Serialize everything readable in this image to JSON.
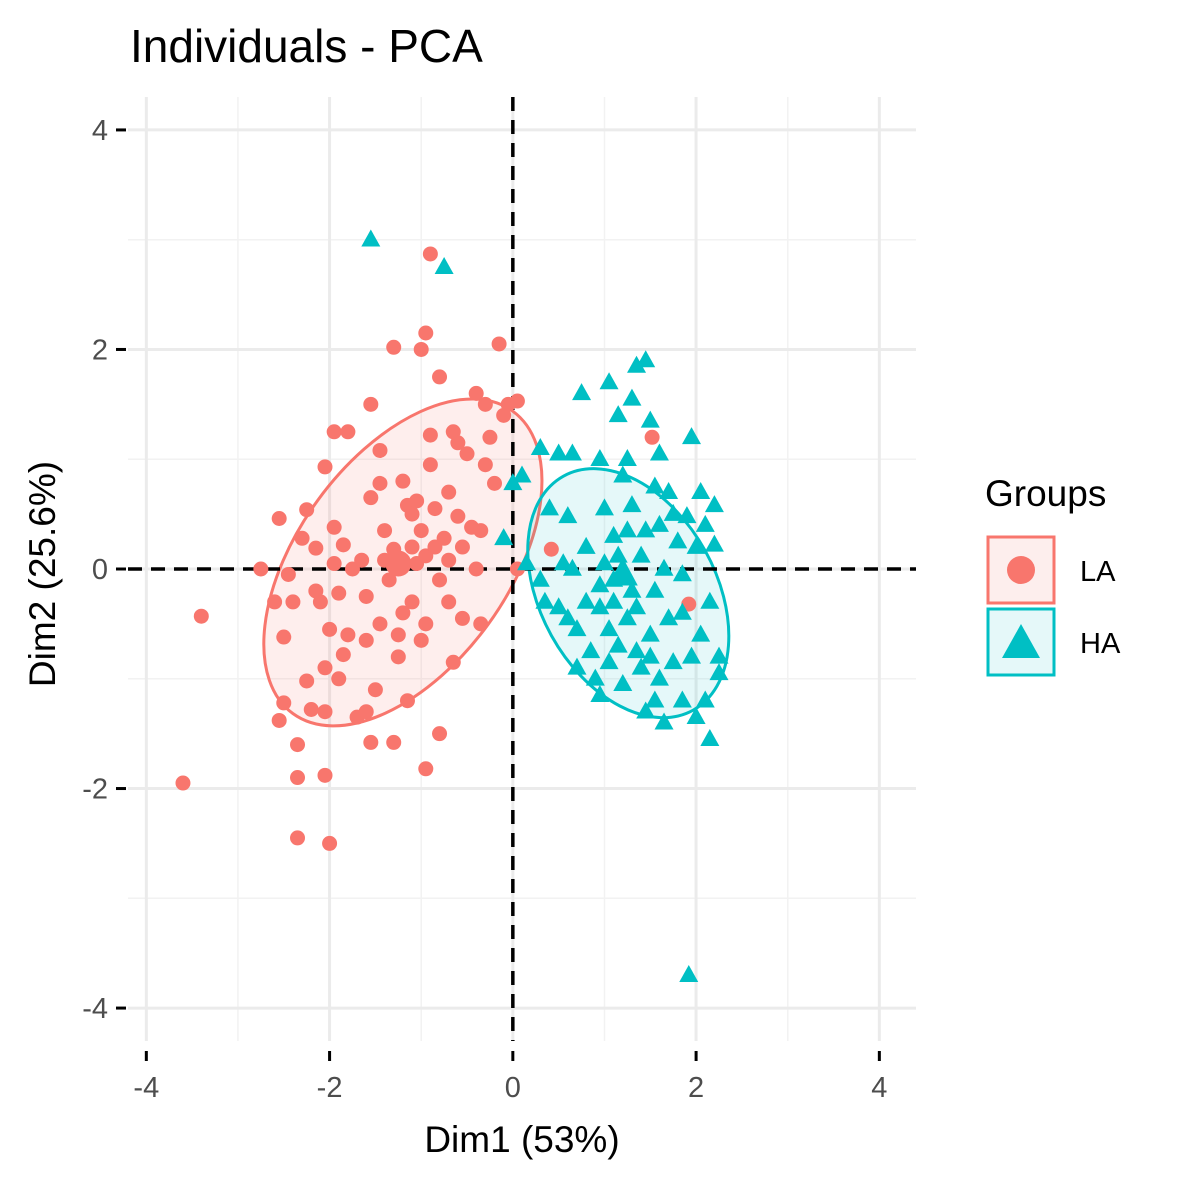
{
  "chart_data": {
    "type": "scatter",
    "title": "Individuals - PCA",
    "xlabel": "Dim1 (53%)",
    "ylabel": "Dim2 (25.6%)",
    "xlim": [
      -4.2,
      4.4
    ],
    "ylim": [
      -4.3,
      4.3
    ],
    "x_ticks": [
      -4,
      -2,
      0,
      2,
      4
    ],
    "y_ticks": [
      -4,
      -2,
      0,
      2,
      4
    ],
    "x_tick_labels": [
      "-4",
      "-2",
      "0",
      "2",
      "4"
    ],
    "y_tick_labels": [
      "-4",
      "-2",
      "0",
      "2",
      "4"
    ],
    "grid": true,
    "reference_lines": {
      "x": 0,
      "y": 0,
      "style": "dashed"
    },
    "legend": {
      "title": "Groups",
      "position": "right"
    },
    "series": [
      {
        "name": "LA",
        "color": "#F8766D",
        "marker": "circle",
        "centroid": [
          -1.25,
          0.05
        ],
        "ellipse": {
          "center": [
            -1.2,
            0.06
          ],
          "rx": 2.04,
          "ry": 0.96,
          "angle_deg": 54
        },
        "points": [
          [
            -3.6,
            -1.95
          ],
          [
            -3.4,
            -0.43
          ],
          [
            -2.75,
            0.0
          ],
          [
            -2.55,
            0.46
          ],
          [
            -2.6,
            -0.3
          ],
          [
            -2.5,
            -1.22
          ],
          [
            -2.55,
            -1.38
          ],
          [
            -2.5,
            -0.62
          ],
          [
            -2.45,
            -0.05
          ],
          [
            -2.4,
            -0.3
          ],
          [
            -2.35,
            -1.6
          ],
          [
            -2.35,
            -1.9
          ],
          [
            -2.35,
            -2.45
          ],
          [
            -2.3,
            0.28
          ],
          [
            -2.25,
            0.54
          ],
          [
            -2.2,
            -1.28
          ],
          [
            -2.25,
            -1.02
          ],
          [
            -2.15,
            0.19
          ],
          [
            -2.1,
            -0.3
          ],
          [
            -2.05,
            0.93
          ],
          [
            -2.05,
            -1.3
          ],
          [
            -2.05,
            -0.9
          ],
          [
            -2.05,
            -1.88
          ],
          [
            -2.0,
            -0.55
          ],
          [
            -2.0,
            -2.5
          ],
          [
            -1.95,
            1.25
          ],
          [
            -1.95,
            0.38
          ],
          [
            -1.95,
            0.05
          ],
          [
            -1.9,
            -1.0
          ],
          [
            -1.9,
            -0.22
          ],
          [
            -1.85,
            0.22
          ],
          [
            -1.85,
            -0.78
          ],
          [
            -1.8,
            1.25
          ],
          [
            -1.75,
            0.0
          ],
          [
            -1.7,
            -1.35
          ],
          [
            -1.65,
            0.08
          ],
          [
            -1.6,
            -0.25
          ],
          [
            -1.6,
            -0.65
          ],
          [
            -1.6,
            -1.3
          ],
          [
            -1.55,
            1.5
          ],
          [
            -1.55,
            -1.58
          ],
          [
            -1.5,
            -1.1
          ],
          [
            -1.45,
            1.08
          ],
          [
            -1.45,
            0.78
          ],
          [
            -1.45,
            -0.5
          ],
          [
            -1.4,
            0.35
          ],
          [
            -1.35,
            -0.1
          ],
          [
            -1.3,
            0.18
          ],
          [
            -1.3,
            -1.58
          ],
          [
            -1.3,
            2.02
          ],
          [
            -1.25,
            0.05
          ],
          [
            -1.25,
            -0.8
          ],
          [
            -1.2,
            0.8
          ],
          [
            -1.2,
            -0.4
          ],
          [
            -1.15,
            0.58
          ],
          [
            -1.1,
            0.5
          ],
          [
            -1.1,
            -0.3
          ],
          [
            -1.05,
            0.62
          ],
          [
            -1.0,
            0.35
          ],
          [
            -1.0,
            -0.65
          ],
          [
            -1.0,
            2.0
          ],
          [
            -0.95,
            2.15
          ],
          [
            -0.95,
            0.12
          ],
          [
            -0.95,
            -0.5
          ],
          [
            -0.95,
            -1.82
          ],
          [
            -0.9,
            2.87
          ],
          [
            -0.9,
            1.22
          ],
          [
            -0.9,
            0.95
          ],
          [
            -0.85,
            0.2
          ],
          [
            -0.8,
            1.75
          ],
          [
            -0.8,
            -0.1
          ],
          [
            -0.8,
            -1.5
          ],
          [
            -0.75,
            0.28
          ],
          [
            -0.7,
            0.7
          ],
          [
            -0.7,
            -0.3
          ],
          [
            -0.65,
            1.25
          ],
          [
            -0.65,
            -0.85
          ],
          [
            -0.6,
            0.48
          ],
          [
            -0.55,
            0.2
          ],
          [
            -0.55,
            -0.45
          ],
          [
            -0.5,
            1.05
          ],
          [
            -0.45,
            0.38
          ],
          [
            -0.4,
            1.6
          ],
          [
            -0.4,
            0.0
          ],
          [
            -0.35,
            0.35
          ],
          [
            -0.35,
            -0.5
          ],
          [
            -0.3,
            1.5
          ],
          [
            -0.25,
            1.2
          ],
          [
            -0.2,
            0.78
          ],
          [
            -0.15,
            2.05
          ],
          [
            -0.1,
            1.4
          ],
          [
            -0.05,
            1.5
          ],
          [
            0.05,
            1.53
          ],
          [
            0.05,
            0.0
          ],
          [
            -0.3,
            0.95
          ],
          [
            -0.6,
            1.15
          ],
          [
            -1.4,
            0.08
          ],
          [
            -1.8,
            -0.6
          ],
          [
            -2.15,
            -0.2
          ],
          [
            -1.15,
            -1.2
          ],
          [
            0.42,
            0.18
          ],
          [
            1.52,
            1.2
          ],
          [
            1.92,
            -0.32
          ],
          [
            -1.05,
            0.05
          ],
          [
            -0.85,
            0.55
          ],
          [
            -1.55,
            0.65
          ],
          [
            -0.7,
            0.08
          ],
          [
            -1.1,
            0.2
          ],
          [
            -1.25,
            -0.6
          ]
        ]
      },
      {
        "name": "HA",
        "color": "#00BFC4",
        "marker": "triangle",
        "centroid": [
          1.2,
          -0.05
        ],
        "ellipse": {
          "center": [
            1.26,
            -0.22
          ],
          "rx": 1.46,
          "ry": 0.8,
          "angle_deg": -61
        },
        "points": [
          [
            -1.55,
            3.0
          ],
          [
            -0.75,
            2.75
          ],
          [
            0.0,
            0.78
          ],
          [
            -0.1,
            0.28
          ],
          [
            0.1,
            0.85
          ],
          [
            0.15,
            0.05
          ],
          [
            0.3,
            1.1
          ],
          [
            0.3,
            -0.1
          ],
          [
            0.35,
            -0.3
          ],
          [
            0.4,
            0.55
          ],
          [
            0.5,
            1.05
          ],
          [
            0.5,
            -0.35
          ],
          [
            0.55,
            0.05
          ],
          [
            0.6,
            0.48
          ],
          [
            0.65,
            1.05
          ],
          [
            0.65,
            0.0
          ],
          [
            0.7,
            -0.55
          ],
          [
            0.7,
            -0.9
          ],
          [
            0.75,
            1.6
          ],
          [
            0.8,
            0.2
          ],
          [
            0.8,
            -0.3
          ],
          [
            0.85,
            -0.75
          ],
          [
            0.9,
            -1.0
          ],
          [
            0.95,
            -1.15
          ],
          [
            0.95,
            -0.35
          ],
          [
            0.95,
            1.0
          ],
          [
            1.0,
            0.55
          ],
          [
            1.0,
            0.05
          ],
          [
            1.05,
            1.7
          ],
          [
            1.05,
            -0.55
          ],
          [
            1.1,
            0.3
          ],
          [
            1.1,
            -0.1
          ],
          [
            1.15,
            1.4
          ],
          [
            1.15,
            -0.7
          ],
          [
            1.2,
            -1.05
          ],
          [
            1.2,
            0.85
          ],
          [
            1.25,
            1.0
          ],
          [
            1.25,
            -0.45
          ],
          [
            1.3,
            0.58
          ],
          [
            1.3,
            -0.2
          ],
          [
            1.3,
            1.55
          ],
          [
            1.35,
            1.85
          ],
          [
            1.35,
            -0.75
          ],
          [
            1.4,
            0.12
          ],
          [
            1.4,
            -0.9
          ],
          [
            1.45,
            1.9
          ],
          [
            1.45,
            0.35
          ],
          [
            1.45,
            -1.3
          ],
          [
            1.5,
            1.35
          ],
          [
            1.5,
            -0.6
          ],
          [
            1.55,
            0.75
          ],
          [
            1.55,
            -0.2
          ],
          [
            1.6,
            -1.0
          ],
          [
            1.6,
            0.4
          ],
          [
            1.6,
            1.05
          ],
          [
            1.65,
            -1.4
          ],
          [
            1.65,
            0.0
          ],
          [
            1.7,
            -0.45
          ],
          [
            1.7,
            0.7
          ],
          [
            1.75,
            -0.85
          ],
          [
            1.8,
            0.25
          ],
          [
            1.85,
            -0.05
          ],
          [
            1.85,
            -1.2
          ],
          [
            1.9,
            0.48
          ],
          [
            1.95,
            1.2
          ],
          [
            1.95,
            -0.8
          ],
          [
            2.0,
            0.2
          ],
          [
            2.0,
            -1.35
          ],
          [
            2.05,
            0.7
          ],
          [
            2.05,
            -0.6
          ],
          [
            2.1,
            0.4
          ],
          [
            2.1,
            -1.2
          ],
          [
            2.15,
            -0.3
          ],
          [
            2.15,
            -1.55
          ],
          [
            2.2,
            0.22
          ],
          [
            2.2,
            0.58
          ],
          [
            2.25,
            -0.8
          ],
          [
            2.25,
            -0.95
          ],
          [
            1.92,
            -3.7
          ],
          [
            1.15,
            0.12
          ],
          [
            0.95,
            -0.15
          ],
          [
            1.35,
            -0.35
          ],
          [
            1.75,
            0.5
          ],
          [
            1.55,
            -1.2
          ],
          [
            1.05,
            -0.85
          ],
          [
            0.6,
            -0.45
          ],
          [
            1.25,
            0.35
          ],
          [
            1.85,
            -0.4
          ],
          [
            1.1,
            -0.3
          ],
          [
            1.5,
            -0.8
          ]
        ]
      }
    ]
  }
}
